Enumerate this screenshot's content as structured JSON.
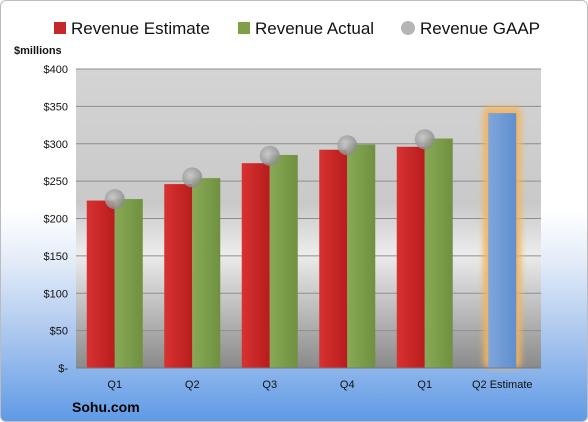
{
  "brand": "Sohu.com",
  "colors": {
    "estimate": "#c62828",
    "actual": "#7fa04a",
    "gaap": "#9a9a9a",
    "forecast": "#6f9cd6",
    "forecast_glow": "#f4b35c"
  },
  "chart_data": {
    "type": "bar",
    "ylabel": "$millions",
    "ylim": [
      0,
      400
    ],
    "yticks": [
      0,
      50,
      100,
      150,
      200,
      250,
      300,
      350,
      400
    ],
    "ytick_labels": [
      "$-",
      "$50",
      "$100",
      "$150",
      "$200",
      "$250",
      "$300",
      "$350",
      "$400"
    ],
    "categories": [
      "Q1",
      "Q2",
      "Q3",
      "Q4",
      "Q1",
      "Q2 Estimate"
    ],
    "legend_position": "top",
    "grid": true,
    "series": [
      {
        "name": "Revenue Estimate",
        "kind": "bar",
        "values": [
          224,
          246,
          274,
          292,
          296,
          null
        ]
      },
      {
        "name": "Revenue Actual",
        "kind": "bar",
        "values": [
          226,
          254,
          285,
          299,
          307,
          341
        ]
      },
      {
        "name": "Revenue GAAP",
        "kind": "marker",
        "values": [
          226,
          255,
          284,
          298,
          306,
          null
        ]
      }
    ],
    "highlighted_category": "Q2 Estimate"
  }
}
